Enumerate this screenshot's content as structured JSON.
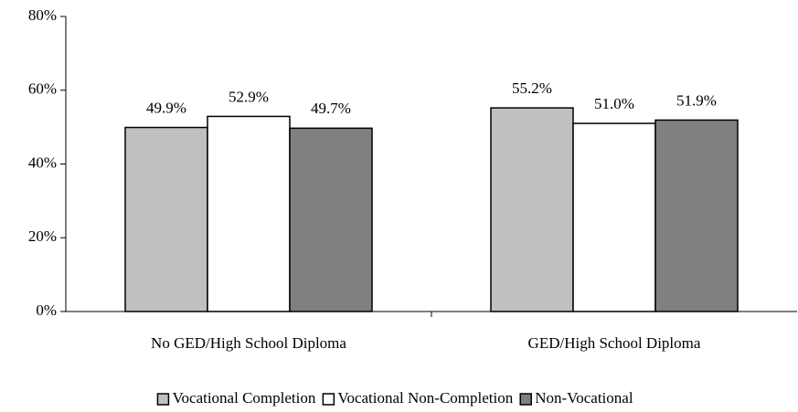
{
  "chart_data": {
    "type": "bar",
    "categories": [
      "No GED/High School Diploma",
      "GED/High School Diploma"
    ],
    "series": [
      {
        "name": "Vocational Completion",
        "color": "#c0c0c0",
        "values": [
          49.9,
          55.2
        ],
        "value_labels": [
          "49.9%",
          "55.2%"
        ]
      },
      {
        "name": "Vocational Non-Completion",
        "color": "#ffffff",
        "values": [
          52.9,
          51.0
        ],
        "value_labels": [
          "52.9%",
          "51.0%"
        ]
      },
      {
        "name": "Non-Vocational",
        "color": "#808080",
        "values": [
          49.7,
          51.9
        ],
        "value_labels": [
          "49.7%",
          "51.9%"
        ]
      }
    ],
    "ylim": [
      0,
      80
    ],
    "yticks": [
      {
        "value": 0,
        "label": "0%"
      },
      {
        "value": 20,
        "label": "20%"
      },
      {
        "value": 40,
        "label": "40%"
      },
      {
        "value": 60,
        "label": "60%"
      },
      {
        "value": 80,
        "label": "80%"
      }
    ],
    "grid": false,
    "legend": "bottom"
  }
}
